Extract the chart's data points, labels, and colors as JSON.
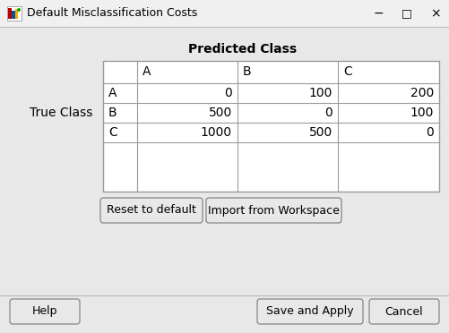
{
  "title_bar_text": "Default Misclassification Costs",
  "bg_color": "#e8e8e8",
  "title_bg": "#f0f0f0",
  "table_header": "Predicted Class",
  "row_label": "True Class",
  "col_headers": [
    "",
    "A",
    "B",
    "C"
  ],
  "row_headers": [
    "A",
    "B",
    "C"
  ],
  "table_data": [
    [
      0,
      100,
      200
    ],
    [
      500,
      0,
      100
    ],
    [
      1000,
      500,
      0
    ]
  ],
  "btn1": "Reset to default",
  "btn2": "Import from Workspace",
  "btn3": "Help",
  "btn4": "Save and Apply",
  "btn5": "Cancel",
  "white": "#ffffff",
  "border_color": "#9a9a9a",
  "text_color": "#000000",
  "btn_text_color": "#1f3864",
  "title_text_color": "#000000",
  "sep_color": "#c0c0c0",
  "fig_w": 5.02,
  "fig_h": 3.72,
  "dpi": 100
}
